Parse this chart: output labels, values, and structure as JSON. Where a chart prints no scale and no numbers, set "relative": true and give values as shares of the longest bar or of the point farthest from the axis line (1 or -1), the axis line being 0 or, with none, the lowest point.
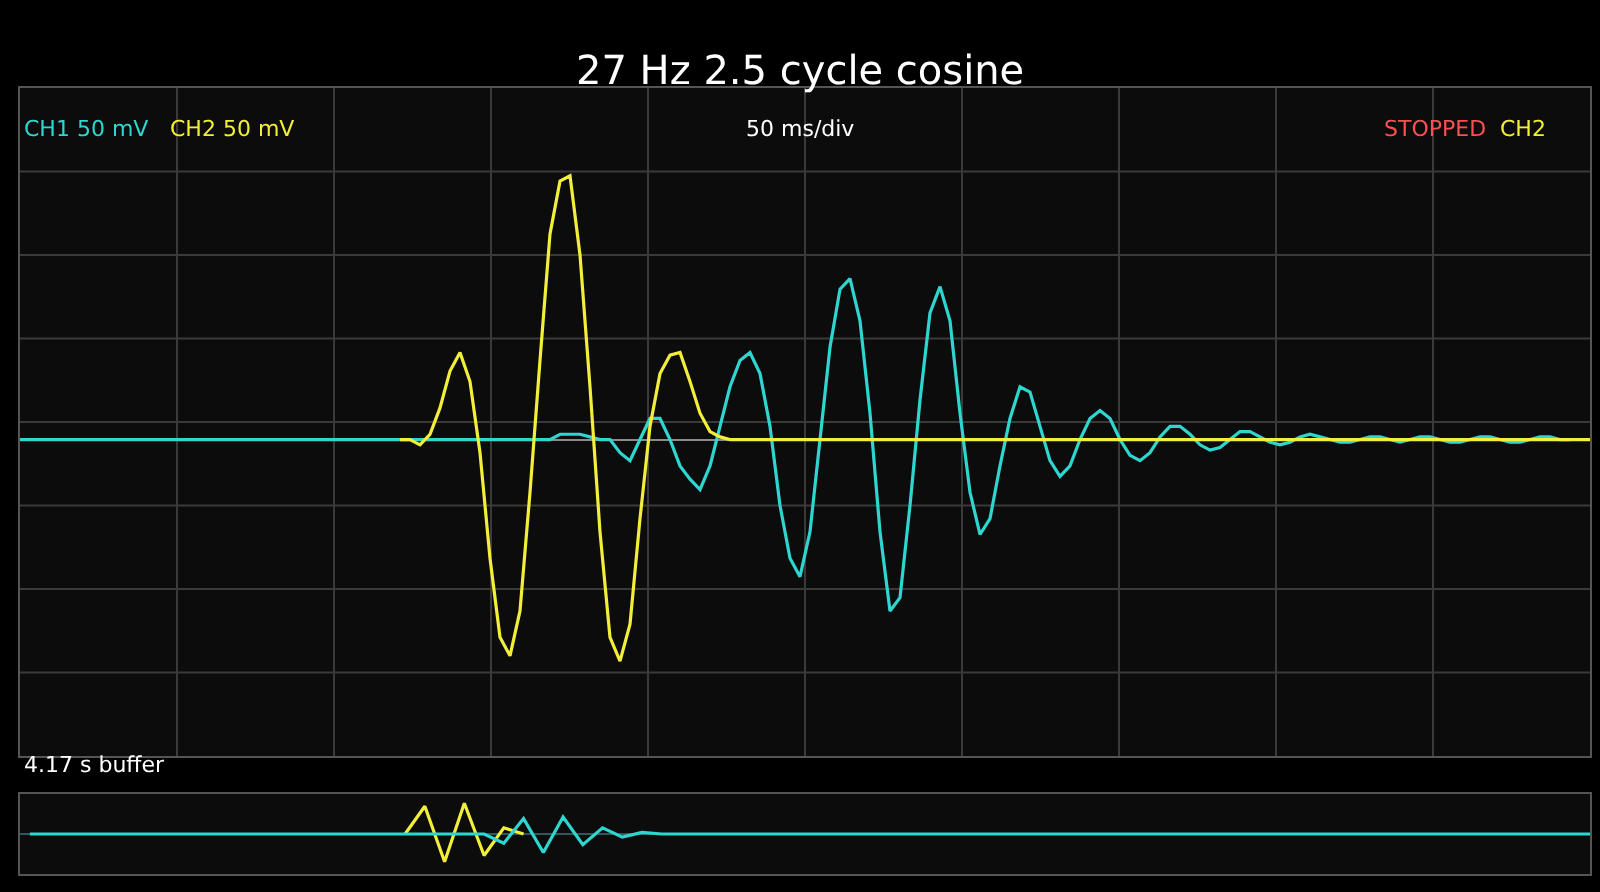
{
  "chart_data": [
    {
      "type": "line",
      "title": "27 Hz 2.5 cycle cosine",
      "relative": true,
      "grid": true,
      "legend": false,
      "annotations": [
        "50 ms/div",
        "STOPPED",
        "CH2"
      ],
      "categories": [
        null,
        null,
        null,
        null,
        null,
        null,
        null,
        null,
        null,
        null,
        null,
        null,
        null,
        null,
        null,
        null,
        null,
        null,
        null,
        null,
        null,
        null,
        null,
        null,
        null,
        null,
        null,
        null,
        null,
        null,
        null,
        null,
        null,
        null,
        null,
        null,
        null,
        null,
        null,
        null,
        null,
        null,
        null,
        null,
        null,
        null,
        null,
        null,
        null,
        null,
        null,
        null,
        null,
        null,
        null,
        null,
        null,
        null,
        null,
        null,
        null,
        null,
        null,
        null,
        null,
        null,
        null,
        null,
        null,
        null,
        null,
        null,
        null,
        null,
        null,
        null,
        null,
        null,
        null,
        null,
        null,
        null,
        null,
        null,
        null,
        null,
        null,
        null,
        null,
        null,
        null,
        null,
        null,
        null,
        null,
        null,
        null,
        null,
        null,
        null,
        null,
        null,
        null,
        null,
        null,
        null,
        null,
        null,
        null,
        null,
        null,
        null,
        null,
        null,
        null,
        null,
        null,
        null,
        null,
        null,
        null,
        null,
        null,
        null,
        null,
        null,
        null,
        null,
        null,
        null,
        null,
        null,
        null,
        null,
        null,
        null,
        null,
        null,
        null,
        null,
        null,
        null,
        null,
        null,
        null,
        null,
        null,
        null,
        null,
        null,
        null,
        null,
        null,
        null,
        null,
        null,
        null,
        null
      ],
      "series": [
        {
          "name": "CH1 50 mV",
          "color": "#2fd6d0",
          "values": [
            0,
            0,
            0,
            0,
            0,
            0,
            0,
            0,
            0,
            0,
            0,
            0,
            0,
            0,
            0,
            0,
            0,
            0,
            0,
            0,
            0,
            0,
            0,
            0,
            0,
            0,
            0,
            0,
            0,
            0,
            0,
            0,
            0,
            0,
            0,
            0,
            0,
            0,
            0,
            0,
            0,
            0,
            0,
            0,
            0,
            0,
            0,
            0,
            0,
            0,
            0,
            0,
            0,
            0,
            0.02,
            0.02,
            0.02,
            0.01,
            0,
            0,
            -0.05,
            -0.08,
            0,
            0.08,
            0.08,
            0,
            -0.1,
            -0.15,
            -0.19,
            -0.1,
            0.05,
            0.2,
            0.3,
            0.33,
            0.25,
            0.05,
            -0.25,
            -0.45,
            -0.52,
            -0.35,
            0,
            0.35,
            0.57,
            0.61,
            0.45,
            0.1,
            -0.35,
            -0.65,
            -0.6,
            -0.25,
            0.15,
            0.48,
            0.58,
            0.45,
            0.1,
            -0.2,
            -0.36,
            -0.3,
            -0.1,
            0.08,
            0.2,
            0.18,
            0.05,
            -0.08,
            -0.14,
            -0.1,
            0,
            0.08,
            0.11,
            0.08,
            0,
            -0.06,
            -0.08,
            -0.05,
            0.01,
            0.05,
            0.05,
            0.02,
            -0.02,
            -0.04,
            -0.03,
            0,
            0.03,
            0.03,
            0.01,
            -0.01,
            -0.02,
            -0.01,
            0.01,
            0.02,
            0.01,
            0,
            -0.01,
            -0.01,
            0,
            0.01,
            0.01,
            0,
            -0.01,
            0,
            0.01,
            0.01,
            0,
            -0.01,
            -0.01,
            0,
            0.01,
            0.01,
            0,
            -0.01,
            -0.01,
            0,
            0.01,
            0.01,
            0,
            0,
            null,
            null
          ]
        },
        {
          "name": "CH2 50 mV",
          "color": "#f2ee3a",
          "values": [
            null,
            null,
            null,
            null,
            null,
            null,
            null,
            null,
            null,
            null,
            null,
            null,
            null,
            null,
            null,
            null,
            null,
            null,
            null,
            null,
            null,
            null,
            null,
            null,
            null,
            null,
            null,
            null,
            null,
            null,
            null,
            null,
            null,
            null,
            null,
            null,
            null,
            null,
            0,
            0,
            -0.02,
            0.02,
            0.12,
            0.26,
            0.33,
            0.22,
            -0.05,
            -0.45,
            -0.75,
            -0.82,
            -0.65,
            -0.2,
            0.3,
            0.78,
            0.98,
            1.0,
            0.7,
            0.2,
            -0.35,
            -0.75,
            -0.84,
            -0.7,
            -0.3,
            0.05,
            0.25,
            0.32,
            0.33,
            0.22,
            0.1,
            0.03,
            0.01,
            0,
            0,
            0,
            0,
            0,
            0,
            0,
            0,
            0,
            0,
            0,
            0,
            0,
            0,
            0,
            0,
            0,
            0,
            0,
            0,
            0,
            0,
            0,
            0,
            0,
            0,
            0,
            0,
            0,
            0,
            0,
            0,
            0,
            0,
            0,
            0,
            0,
            0,
            0,
            0,
            0,
            0,
            0,
            0,
            0,
            0,
            0,
            0,
            0,
            0,
            0,
            0,
            0,
            0,
            0,
            0,
            0,
            0,
            0,
            0,
            0,
            0,
            0,
            0,
            0,
            0,
            0,
            0,
            0,
            0,
            0,
            0,
            0,
            0,
            0,
            0,
            0,
            0,
            0,
            0,
            0,
            0,
            0,
            0,
            0,
            0,
            0
          ]
        }
      ]
    },
    {
      "type": "line",
      "relative": true,
      "legend": false,
      "annotations": [
        "4.17 s buffer"
      ],
      "categories": [
        null,
        null,
        null,
        null,
        null,
        null,
        null,
        null,
        null,
        null,
        null,
        null,
        null,
        null,
        null,
        null,
        null,
        null,
        null,
        null,
        null,
        null,
        null,
        null,
        null,
        null,
        null,
        null,
        null,
        null,
        null,
        null,
        null,
        null,
        null,
        null,
        null,
        null,
        null,
        null,
        null,
        null,
        null,
        null,
        null,
        null,
        null,
        null,
        null,
        null,
        null,
        null,
        null,
        null,
        null,
        null,
        null,
        null,
        null,
        null,
        null,
        null,
        null,
        null,
        null,
        null,
        null,
        null,
        null,
        null,
        null,
        null,
        null,
        null,
        null,
        null,
        null,
        null,
        null,
        null
      ],
      "series": [
        {
          "color": "#f2ee3a",
          "values": [
            null,
            null,
            null,
            null,
            null,
            null,
            null,
            null,
            null,
            null,
            null,
            null,
            null,
            null,
            null,
            null,
            null,
            null,
            null,
            0,
            0.9,
            -0.9,
            1.0,
            -0.7,
            0.2,
            0,
            null,
            null,
            null,
            null,
            null,
            null,
            null,
            null,
            null,
            null,
            null,
            null,
            null,
            null,
            null,
            null,
            null,
            null,
            null,
            null,
            null,
            null,
            null,
            null,
            null,
            null,
            null,
            null,
            null,
            null,
            null,
            null,
            null,
            null,
            null,
            null,
            null,
            null,
            null,
            null,
            null,
            null,
            null,
            null,
            null,
            null,
            null,
            null,
            null,
            null,
            null,
            null,
            null,
            null
          ]
        },
        {
          "color": "#2fd6d0",
          "values": [
            0,
            0,
            0,
            0,
            0,
            0,
            0,
            0,
            0,
            0,
            0,
            0,
            0,
            0,
            0,
            0,
            0,
            0,
            0,
            0,
            0,
            0,
            0,
            0,
            -0.3,
            0.5,
            -0.6,
            0.55,
            -0.35,
            0.2,
            -0.1,
            0.05,
            0,
            0,
            0,
            0,
            0,
            0,
            0,
            0,
            0,
            0,
            0,
            0,
            0,
            0,
            0,
            0,
            0,
            0,
            0,
            0,
            0,
            0,
            0,
            0,
            0,
            0,
            0,
            0,
            0,
            0,
            0,
            0,
            0,
            0,
            0,
            0,
            0,
            0,
            0,
            0,
            0,
            0,
            0,
            0,
            0,
            0,
            0,
            0
          ]
        }
      ]
    }
  ]
}
